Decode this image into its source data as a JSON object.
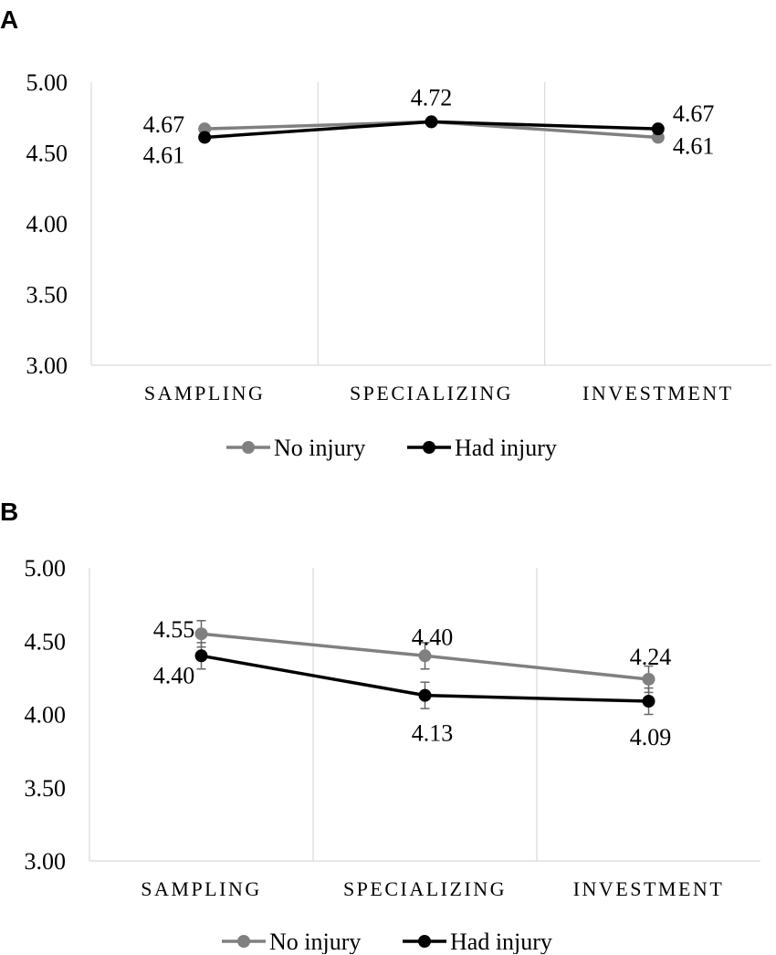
{
  "chart_data": [
    {
      "panel_label": "A",
      "type": "line",
      "categories": [
        "SAMPLING",
        "SPECIALIZING",
        "INVESTMENT"
      ],
      "ylim": [
        3.0,
        5.0
      ],
      "yticks": [
        "5.00",
        "4.50",
        "4.00",
        "3.50",
        "3.00"
      ],
      "grid": "vertical category separators",
      "legend_position": "bottom",
      "error_bars": false,
      "series": [
        {
          "name": "No injury",
          "color": "#808080",
          "values": [
            4.67,
            4.72,
            4.61
          ],
          "labels": [
            "4.67",
            "",
            "4.61"
          ]
        },
        {
          "name": "Had injury",
          "color": "#000000",
          "values": [
            4.61,
            4.72,
            4.67
          ],
          "labels": [
            "4.61",
            "4.72",
            "4.67"
          ]
        }
      ]
    },
    {
      "panel_label": "B",
      "type": "line",
      "categories": [
        "SAMPLING",
        "SPECIALIZING",
        "INVESTMENT"
      ],
      "ylim": [
        3.0,
        5.0
      ],
      "yticks": [
        "5.00",
        "4.50",
        "4.00",
        "3.50",
        "3.00"
      ],
      "grid": "vertical category separators",
      "legend_position": "bottom",
      "error_bars": true,
      "series": [
        {
          "name": "No injury",
          "color": "#808080",
          "values": [
            4.55,
            4.4,
            4.24
          ],
          "errors": [
            0.09,
            0.09,
            0.09
          ],
          "labels": [
            "4.55",
            "4.40",
            "4.24"
          ]
        },
        {
          "name": "Had injury",
          "color": "#000000",
          "values": [
            4.4,
            4.13,
            4.09
          ],
          "errors": [
            0.09,
            0.09,
            0.09
          ],
          "labels": [
            "4.40",
            "4.13",
            "4.09"
          ]
        }
      ]
    }
  ]
}
